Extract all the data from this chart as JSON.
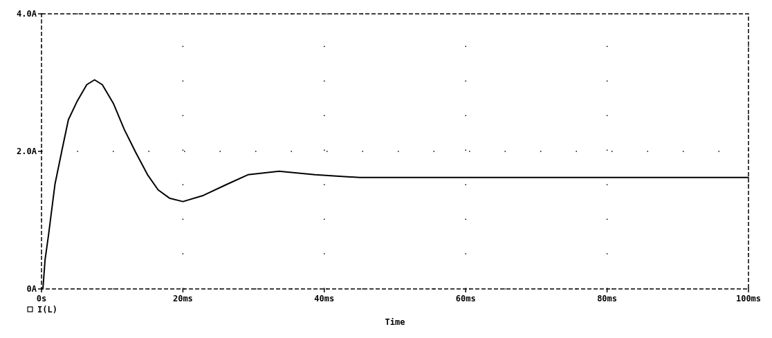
{
  "chart_data": {
    "type": "line",
    "xlabel": "Time",
    "x": [
      0,
      0.2,
      0.5,
      1,
      1.9,
      2.9,
      3.8,
      5,
      6.4,
      7.5,
      8.6,
      10.2,
      11.7,
      13.3,
      15,
      16.5,
      18.1,
      20,
      22.9,
      26,
      29.2,
      33.6,
      38.7,
      45,
      55,
      65,
      75,
      85,
      95,
      100
    ],
    "series": [
      {
        "name": "I(L)",
        "color": "#000000",
        "values": [
          0,
          0,
          0.42,
          0.79,
          1.52,
          2.02,
          2.46,
          2.72,
          2.97,
          3.04,
          2.97,
          2.69,
          2.32,
          1.99,
          1.66,
          1.44,
          1.32,
          1.27,
          1.36,
          1.51,
          1.66,
          1.71,
          1.66,
          1.62,
          1.62,
          1.62,
          1.62,
          1.62,
          1.62,
          1.62
        ]
      }
    ],
    "xlim": [
      0,
      100
    ],
    "xticks": [
      {
        "value": 0,
        "label": "0s"
      },
      {
        "value": 20,
        "label": "20ms"
      },
      {
        "value": 40,
        "label": "40ms"
      },
      {
        "value": 60,
        "label": "60ms"
      },
      {
        "value": 80,
        "label": "80ms"
      },
      {
        "value": 100,
        "label": "100ms"
      }
    ],
    "ylim": [
      0,
      4
    ],
    "yticks": [
      {
        "value": 0,
        "label": "0A"
      },
      {
        "value": 2,
        "label": "2.0A"
      },
      {
        "value": 4,
        "label": "4.0A"
      }
    ],
    "grid": true,
    "legend": "bottom left",
    "marker": "none",
    "line_style": "solid"
  }
}
